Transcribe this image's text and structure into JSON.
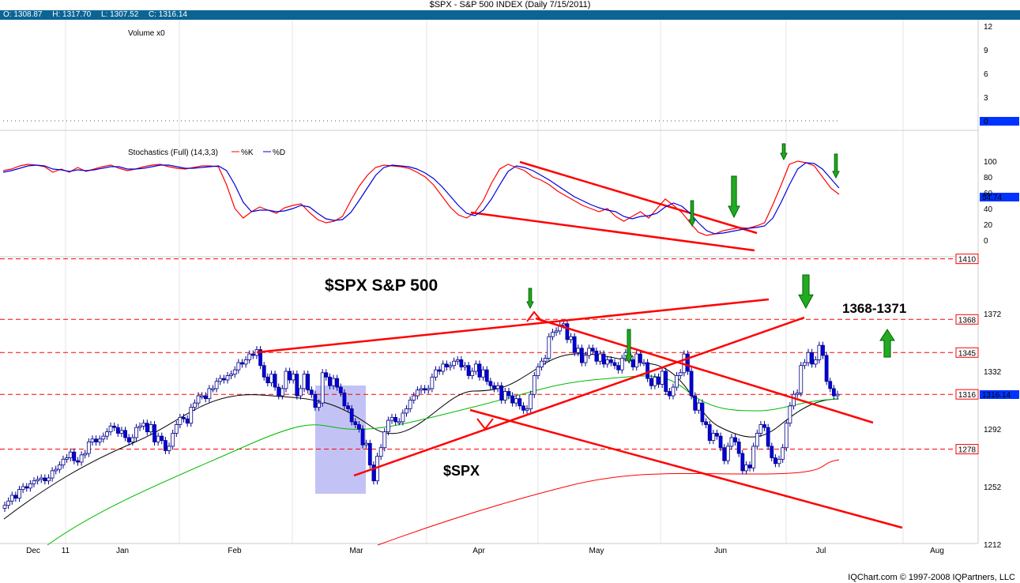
{
  "header": {
    "title": "$SPX - S&P 500 INDEX (Daily 7/15/2011)",
    "open": "O: 1308.87",
    "high": "H: 1317.70",
    "low": "L: 1307.52",
    "close": "C: 1316.14"
  },
  "footer": {
    "copyright": "IQChart.com © 1997-2008 IQPartners, LLC"
  },
  "chart_data": [
    {
      "type": "bar",
      "panel": "volume",
      "legend": "Volume x0",
      "y_ticks": [
        "12",
        "9",
        "6",
        "3"
      ],
      "last_value_label": "0",
      "values": [
        0
      ]
    },
    {
      "type": "line",
      "panel": "stochastics",
      "legend_title": "Stochastics (Full) (14,3,3)",
      "series": [
        {
          "name": "%K",
          "color": "#ff0000",
          "values": [
            88,
            90,
            94,
            96,
            95,
            93,
            86,
            90,
            86,
            92,
            87,
            90,
            93,
            95,
            91,
            88,
            90,
            93,
            95,
            96,
            93,
            91,
            90,
            92,
            94,
            94,
            93,
            70,
            40,
            28,
            36,
            42,
            38,
            34,
            41,
            44,
            46,
            35,
            26,
            22,
            24,
            30,
            50,
            68,
            82,
            92,
            95,
            94,
            93,
            91,
            86,
            80,
            70,
            56,
            42,
            32,
            28,
            35,
            50,
            72,
            90,
            96,
            92,
            88,
            80,
            76,
            70,
            62,
            56,
            50,
            44,
            40,
            36,
            40,
            30,
            24,
            30,
            36,
            28,
            40,
            52,
            44,
            35,
            22,
            10,
            6,
            8,
            12,
            14,
            16,
            15,
            18,
            22,
            45,
            70,
            96,
            100,
            98,
            94,
            80,
            66,
            58
          ]
        },
        {
          "name": "%D",
          "color": "#0000dd",
          "values": [
            86,
            88,
            91,
            94,
            95,
            94,
            90,
            89,
            87,
            89,
            88,
            89,
            91,
            93,
            93,
            90,
            90,
            91,
            93,
            95,
            95,
            93,
            91,
            91,
            92,
            93,
            94,
            88,
            70,
            48,
            36,
            38,
            38,
            36,
            37,
            40,
            44,
            42,
            34,
            27,
            25,
            26,
            35,
            50,
            66,
            82,
            92,
            95,
            94,
            93,
            90,
            85,
            78,
            68,
            56,
            44,
            34,
            31,
            38,
            52,
            70,
            87,
            94,
            92,
            88,
            82,
            76,
            69,
            62,
            55,
            50,
            45,
            41,
            38,
            36,
            30,
            27,
            30,
            31,
            34,
            42,
            47,
            43,
            34,
            22,
            12,
            8,
            9,
            11,
            13,
            15,
            16,
            18,
            28,
            48,
            70,
            90,
            98,
            97,
            90,
            78,
            66
          ]
        }
      ],
      "y_ticks": [
        "100",
        "80",
        "60",
        "40",
        "20",
        "0"
      ],
      "last_value_label": "54.74"
    },
    {
      "type": "candlestick",
      "panel": "price",
      "title": "$SPX S&P 500",
      "series_label": "$SPX",
      "range_label": "1368-1371",
      "x_ticks": [
        "Dec",
        "11",
        "Jan",
        "Feb",
        "Mar",
        "Apr",
        "May",
        "Jun",
        "Jul",
        "Aug"
      ],
      "y_ticks": [
        "1372",
        "1332",
        "1292",
        "1252",
        "1212"
      ],
      "ylim": [
        1208,
        1420
      ],
      "levels": [
        {
          "value": 1410,
          "label": "1410"
        },
        {
          "value": 1368,
          "label": "1368"
        },
        {
          "value": 1345,
          "label": "1345"
        },
        {
          "value": 1316,
          "label": "1316"
        },
        {
          "value": 1278,
          "label": "1278"
        }
      ],
      "last_value_label": "1316.14",
      "close": [
        1239,
        1242,
        1246,
        1244,
        1250,
        1252,
        1251,
        1254,
        1256,
        1257,
        1258,
        1256,
        1258,
        1263,
        1264,
        1267,
        1271,
        1272,
        1276,
        1270,
        1269,
        1274,
        1275,
        1283,
        1285,
        1283,
        1285,
        1287,
        1290,
        1294,
        1293,
        1289,
        1291,
        1286,
        1283,
        1286,
        1293,
        1294,
        1296,
        1290,
        1295,
        1283,
        1287,
        1284,
        1277,
        1280,
        1289,
        1295,
        1300,
        1299,
        1296,
        1307,
        1310,
        1315,
        1315,
        1313,
        1320,
        1320,
        1325,
        1327,
        1326,
        1329,
        1330,
        1333,
        1338,
        1337,
        1340,
        1344,
        1343,
        1347,
        1336,
        1328,
        1324,
        1330,
        1321,
        1315,
        1320,
        1332,
        1326,
        1330,
        1315,
        1320,
        1330,
        1319,
        1316,
        1307,
        1310,
        1331,
        1328,
        1322,
        1327,
        1321,
        1317,
        1308,
        1306,
        1297,
        1295,
        1292,
        1281,
        1282,
        1267,
        1256,
        1273,
        1279,
        1290,
        1298,
        1300,
        1297,
        1297,
        1303,
        1306,
        1312,
        1315,
        1319,
        1320,
        1319,
        1320,
        1328,
        1333,
        1332,
        1337,
        1335,
        1336,
        1339,
        1340,
        1335,
        1336,
        1329,
        1332,
        1337,
        1328,
        1333,
        1325,
        1322,
        1320,
        1322,
        1312,
        1318,
        1315,
        1310,
        1313,
        1308,
        1305,
        1306,
        1316,
        1329,
        1335,
        1339,
        1341,
        1356,
        1359,
        1360,
        1364,
        1365,
        1354,
        1356,
        1345,
        1348,
        1338,
        1343,
        1348,
        1346,
        1339,
        1344,
        1337,
        1340,
        1338,
        1336,
        1333,
        1341,
        1345,
        1340,
        1335,
        1344,
        1338,
        1338,
        1327,
        1322,
        1328,
        1323,
        1332,
        1318,
        1315,
        1321,
        1329,
        1331,
        1344,
        1332,
        1315,
        1305,
        1310,
        1297,
        1295,
        1284,
        1289,
        1287,
        1279,
        1270,
        1280,
        1286,
        1283,
        1275,
        1263,
        1267,
        1265,
        1280,
        1289,
        1295,
        1293,
        1280,
        1272,
        1268,
        1271,
        1279,
        1296,
        1308,
        1316,
        1317,
        1336,
        1338,
        1345,
        1337,
        1340,
        1350,
        1343,
        1325,
        1320,
        1315,
        1316
      ]
    }
  ]
}
